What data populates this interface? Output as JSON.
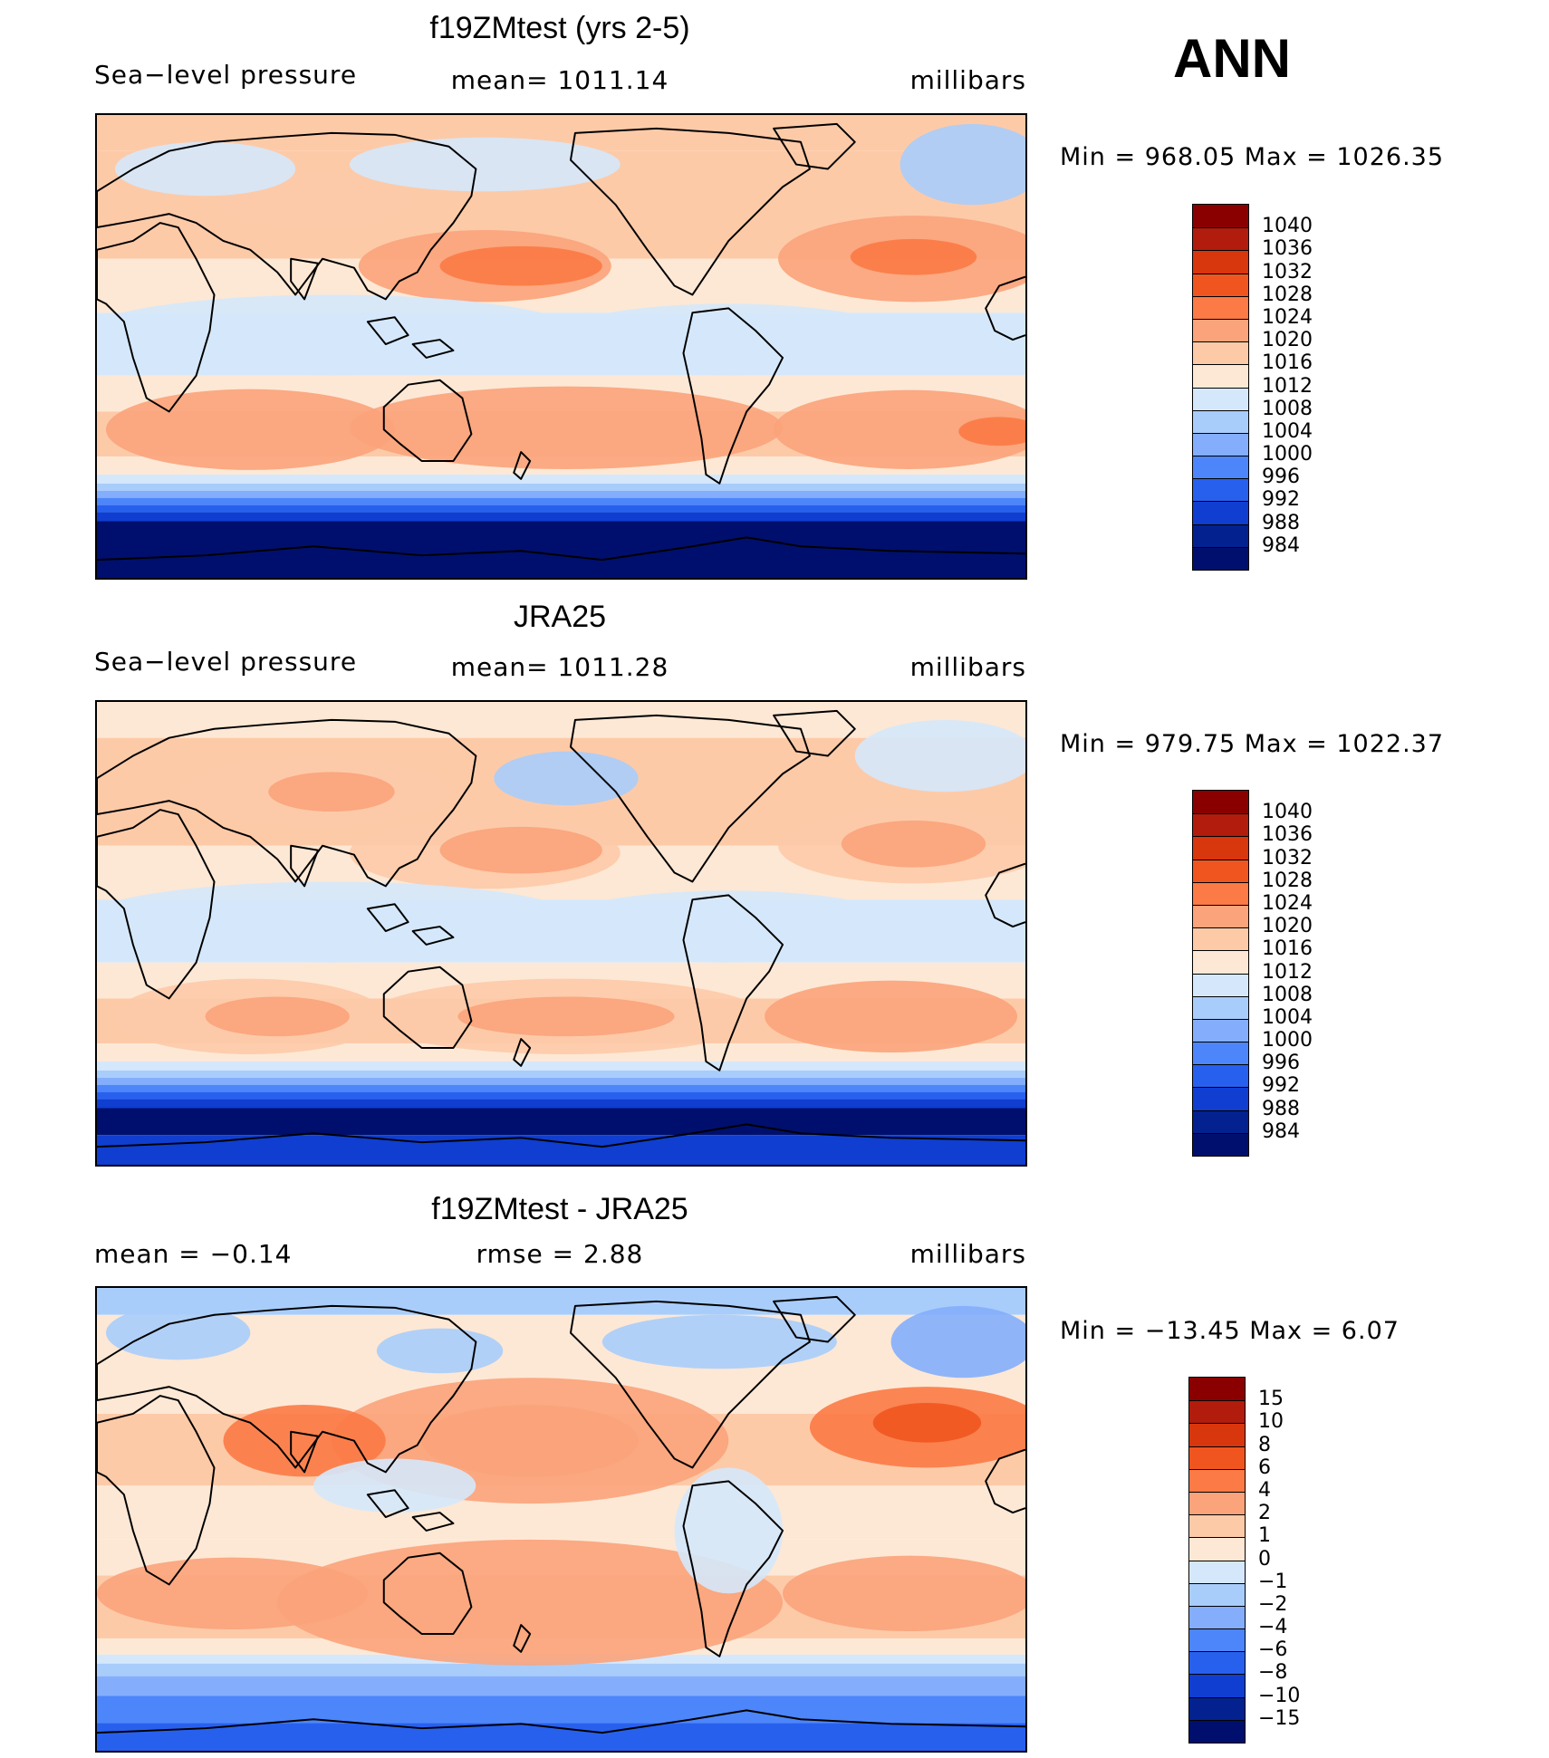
{
  "season": "ANN",
  "panels": [
    {
      "title": "f19ZMtest (yrs 2-5)",
      "left_label": "Sea−level pressure",
      "center_label": "mean=  1011.14",
      "units": "millibars",
      "minmax": "Min  =  968.05  Max  =  1026.35",
      "colorbar": {
        "labels": [
          "1040",
          "1036",
          "1032",
          "1028",
          "1024",
          "1020",
          "1016",
          "1012",
          "1008",
          "1004",
          "1000",
          "996",
          "992",
          "988",
          "984"
        ],
        "colors": [
          "#8a0000",
          "#b21c0c",
          "#d8360c",
          "#f1551f",
          "#fb7a45",
          "#fba37a",
          "#fdcaa8",
          "#fde8d5",
          "#d5e8fb",
          "#a9cdfb",
          "#84aefc",
          "#4d86fb",
          "#2860ee",
          "#0f3ed0",
          "#03228f",
          "#000f6d"
        ]
      },
      "style": "model"
    },
    {
      "title": "JRA25",
      "left_label": "Sea−level pressure",
      "center_label": "mean=  1011.28",
      "units": "millibars",
      "minmax": "Min  =  979.75  Max  =  1022.37",
      "colorbar": {
        "labels": [
          "1040",
          "1036",
          "1032",
          "1028",
          "1024",
          "1020",
          "1016",
          "1012",
          "1008",
          "1004",
          "1000",
          "996",
          "992",
          "988",
          "984"
        ],
        "colors": [
          "#8a0000",
          "#b21c0c",
          "#d8360c",
          "#f1551f",
          "#fb7a45",
          "#fba37a",
          "#fdcaa8",
          "#fde8d5",
          "#d5e8fb",
          "#a9cdfb",
          "#84aefc",
          "#4d86fb",
          "#2860ee",
          "#0f3ed0",
          "#03228f",
          "#000f6d"
        ]
      },
      "style": "obs"
    },
    {
      "title": "f19ZMtest - JRA25",
      "left_label": "mean  =    −0.14",
      "center_label": "rmse  =     2.88",
      "units": "millibars",
      "minmax": "Min  =  −13.45  Max  =      6.07",
      "colorbar": {
        "labels": [
          "15",
          "10",
          "8",
          "6",
          "4",
          "2",
          "1",
          "0",
          "−1",
          "−2",
          "−4",
          "−6",
          "−8",
          "−10",
          "−15"
        ],
        "colors": [
          "#8a0000",
          "#b21c0c",
          "#d8360c",
          "#f1551f",
          "#fb7a45",
          "#fba37a",
          "#fdcaa8",
          "#fde8d5",
          "#d5e8fb",
          "#a9cdfb",
          "#84aefc",
          "#4d86fb",
          "#2860ee",
          "#0f3ed0",
          "#03228f",
          "#000f6d"
        ]
      },
      "style": "diff"
    }
  ]
}
